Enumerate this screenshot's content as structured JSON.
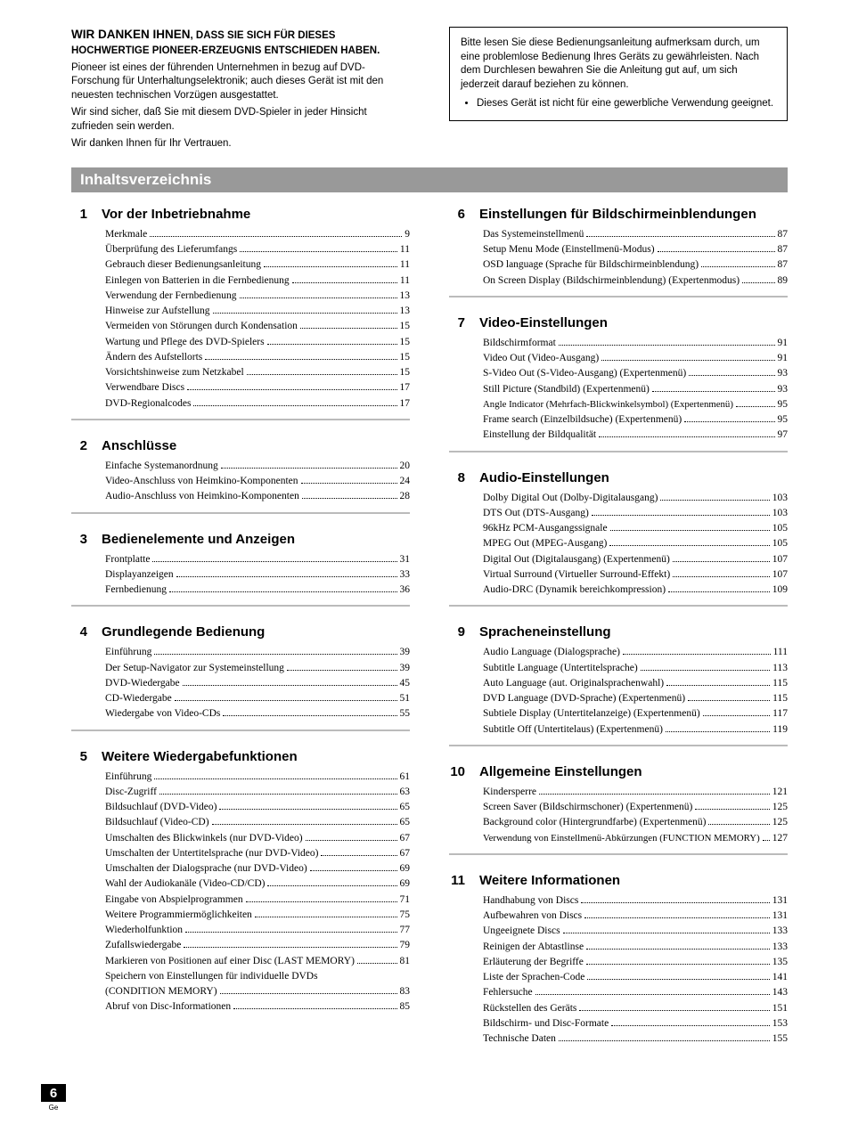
{
  "header": {
    "thanks_big": "WIR DANKEN IHNEN",
    "thanks_rest": ", DASS SIE SICH FÜR DIESES HOCHWERTIGE PIONEER-ERZEUGNIS ENTSCHIEDEN HABEN.",
    "intro1": "Pioneer ist eines der führenden Unternehmen in bezug auf DVD-Forschung für Unterhaltungselektronik; auch dieses Gerät ist mit den neuesten technischen Vorzügen ausgestattet.",
    "intro2": "Wir sind sicher, daß Sie mit diesem DVD-Spieler in jeder Hinsicht zufrieden sein werden.",
    "intro3": "Wir danken Ihnen für Ihr Vertrauen.",
    "note_p": "Bitte lesen Sie diese Bedienungsanleitung aufmerksam durch, um eine problemlose Bedienung Ihres Geräts zu gewährleisten. Nach dem Durchlesen bewahren Sie die Anleitung gut auf, um sich jederzeit darauf beziehen zu können.",
    "note_bullet": "Dieses Gerät ist nicht für eine gewerbliche Verwendung geeignet."
  },
  "toc_title": "Inhaltsverzeichnis",
  "left": [
    {
      "num": "1",
      "title": "Vor der Inbetriebnahme",
      "items": [
        {
          "t": "Merkmale",
          "p": "9"
        },
        {
          "t": "Überprüfung des Lieferumfangs",
          "p": "11"
        },
        {
          "t": "Gebrauch dieser Bedienungsanleitung",
          "p": "11"
        },
        {
          "t": "Einlegen von Batterien in die Fernbedienung",
          "p": "11"
        },
        {
          "t": "Verwendung der Fernbedienung",
          "p": "13"
        },
        {
          "t": "Hinweise zur Aufstellung",
          "p": "13"
        },
        {
          "t": "Vermeiden von Störungen durch Kondensation",
          "p": "15"
        },
        {
          "t": "Wartung und Pflege des DVD-Spielers",
          "p": "15"
        },
        {
          "t": "Ändern des Aufstellorts",
          "p": "15"
        },
        {
          "t": "Vorsichtshinweise zum Netzkabel",
          "p": "15"
        },
        {
          "t": "Verwendbare Discs",
          "p": "17"
        },
        {
          "t": "DVD-Regionalcodes",
          "p": "17"
        }
      ]
    },
    {
      "num": "2",
      "title": "Anschlüsse",
      "items": [
        {
          "t": "Einfache Systemanordnung",
          "p": "20"
        },
        {
          "t": "Video-Anschluss von Heimkino-Komponenten",
          "p": "24"
        },
        {
          "t": "Audio-Anschluss von Heimkino-Komponenten",
          "p": "28"
        }
      ]
    },
    {
      "num": "3",
      "title": "Bedienelemente und Anzeigen",
      "items": [
        {
          "t": "Frontplatte",
          "p": "31"
        },
        {
          "t": "Displayanzeigen",
          "p": "33"
        },
        {
          "t": "Fernbedienung",
          "p": "36"
        }
      ]
    },
    {
      "num": "4",
      "title": "Grundlegende Bedienung",
      "items": [
        {
          "t": "Einführung",
          "p": "39"
        },
        {
          "t": "Der Setup-Navigator zur Systemeinstellung",
          "p": "39"
        },
        {
          "t": "DVD-Wiedergabe",
          "p": "45"
        },
        {
          "t": "CD-Wiedergabe",
          "p": "51"
        },
        {
          "t": "Wiedergabe von Video-CDs",
          "p": "55"
        }
      ]
    },
    {
      "num": "5",
      "title": "Weitere Wiedergabefunktionen",
      "nodivider": true,
      "items": [
        {
          "t": "Einführung",
          "p": "61"
        },
        {
          "t": "Disc-Zugriff",
          "p": "63"
        },
        {
          "t": "Bildsuchlauf (DVD-Video)",
          "p": "65"
        },
        {
          "t": "Bildsuchlauf (Video-CD)",
          "p": "65"
        },
        {
          "t": "Umschalten des Blickwinkels (nur DVD-Video)",
          "p": "67"
        },
        {
          "t": "Umschalten der Untertitelsprache (nur DVD-Video)",
          "p": "67"
        },
        {
          "t": "Umschalten der Dialogsprache (nur DVD-Video)",
          "p": "69"
        },
        {
          "t": "Wahl der Audiokanäle (Video-CD/CD)",
          "p": "69"
        },
        {
          "t": "Eingabe von Abspielprogrammen",
          "p": "71"
        },
        {
          "t": "Weitere Programmiermöglichkeiten",
          "p": "75"
        },
        {
          "t": "Wiederholfunktion",
          "p": "77"
        },
        {
          "t": "Zufallswiedergabe",
          "p": "79"
        },
        {
          "t": "Markieren von Positionen auf einer Disc (LAST MEMORY)",
          "p": "81"
        },
        {
          "t": "Speichern von Einstellungen für individuelle DVDs",
          "nopage": true
        },
        {
          "t": "(CONDITION MEMORY)",
          "p": "83"
        },
        {
          "t": "Abruf von Disc-Informationen",
          "p": "85"
        }
      ]
    }
  ],
  "right": [
    {
      "num": "6",
      "title": "Einstellungen für Bildschirmeinblendungen",
      "items": [
        {
          "t": "Das Systemeinstellmenü",
          "p": "87"
        },
        {
          "t": "Setup Menu Mode (Einstellmenü-Modus)",
          "p": "87"
        },
        {
          "t": "OSD language (Sprache für Bildschirmeinblendung)",
          "p": "87"
        },
        {
          "t": "On Screen Display (Bildschirmeinblendung) (Expertenmodus)",
          "p": "89"
        }
      ]
    },
    {
      "num": "7",
      "title": "Video-Einstellungen",
      "items": [
        {
          "t": "Bildschirmformat",
          "p": "91"
        },
        {
          "t": "Video Out (Video-Ausgang)",
          "p": "91"
        },
        {
          "t": "S-Video Out (S-Video-Ausgang) (Expertenmenü)",
          "p": "93"
        },
        {
          "t": "Still Picture (Standbild) (Expertenmenü)",
          "p": "93"
        },
        {
          "t": "Angle Indicator (Mehrfach-Blickwinkelsymbol) (Expertenmenü)",
          "p": "95",
          "small": true
        },
        {
          "t": "Frame search (Einzelbildsuche) (Expertenmenü)",
          "p": "95"
        },
        {
          "t": "Einstellung der Bildqualität",
          "p": "97"
        }
      ]
    },
    {
      "num": "8",
      "title": "Audio-Einstellungen",
      "items": [
        {
          "t": "Dolby Digital Out (Dolby-Digitalausgang)",
          "p": "103"
        },
        {
          "t": "DTS Out (DTS-Ausgang)",
          "p": "103"
        },
        {
          "t": "96kHz PCM-Ausgangssignale",
          "p": "105"
        },
        {
          "t": "MPEG Out (MPEG-Ausgang)",
          "p": "105"
        },
        {
          "t": "Digital Out (Digitalausgang) (Expertenmenü)",
          "p": "107"
        },
        {
          "t": "Virtual Surround (Virtueller Surround-Effekt)",
          "p": "107"
        },
        {
          "t": "Audio-DRC (Dynamik bereichkompression)",
          "p": "109"
        }
      ]
    },
    {
      "num": "9",
      "title": "Spracheneinstellung",
      "items": [
        {
          "t": "Audio Language (Dialogsprache)",
          "p": "111"
        },
        {
          "t": "Subtitle Language (Untertitelsprache)",
          "p": "113"
        },
        {
          "t": "Auto Language (aut. Originalsprachenwahl)",
          "p": "115"
        },
        {
          "t": "DVD Language (DVD-Sprache) (Expertenmenü)",
          "p": "115"
        },
        {
          "t": "Subtiele Display (Untertitelanzeige) (Expertenmenü)",
          "p": "117"
        },
        {
          "t": "Subtitle Off (Untertitelaus) (Expertenmenü)",
          "p": "119"
        }
      ]
    },
    {
      "num": "10",
      "title": "Allgemeine Einstellungen",
      "items": [
        {
          "t": "Kindersperre",
          "p": "121"
        },
        {
          "t": "Screen Saver (Bildschirmschoner) (Expertenmenü)",
          "p": "125"
        },
        {
          "t": "Background color (Hintergrundfarbe) (Expertenmenü)",
          "p": "125"
        },
        {
          "t": "Verwendung von Einstellmenü-Abkürzungen (FUNCTION MEMORY)",
          "p": "127",
          "small": true
        }
      ]
    },
    {
      "num": "11",
      "title": "Weitere Informationen",
      "nodivider": true,
      "items": [
        {
          "t": "Handhabung von Discs",
          "p": "131"
        },
        {
          "t": "Aufbewahren von Discs",
          "p": "131"
        },
        {
          "t": "Ungeeignete Discs",
          "p": "133"
        },
        {
          "t": "Reinigen der Abtastlinse",
          "p": "133"
        },
        {
          "t": "Erläuterung der Begriffe",
          "p": "135"
        },
        {
          "t": "Liste der Sprachen-Code",
          "p": "141"
        },
        {
          "t": "Fehlersuche",
          "p": "143"
        },
        {
          "t": "Rückstellen des Geräts",
          "p": "151"
        },
        {
          "t": "Bildschirm- und Disc-Formate",
          "p": "153"
        },
        {
          "t": "Technische Daten",
          "p": "155"
        }
      ]
    }
  ],
  "page_number": "6",
  "page_lang": "Ge"
}
